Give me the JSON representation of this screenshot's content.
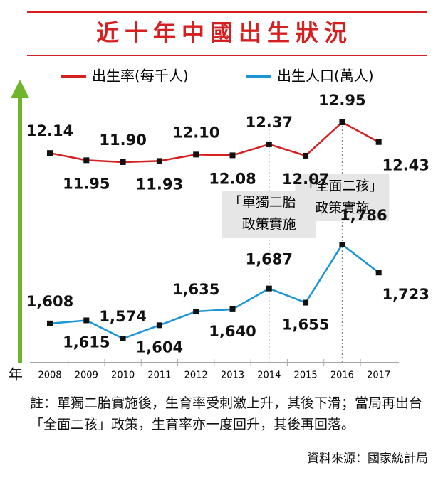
{
  "chart_data": {
    "type": "line",
    "title": "近十年中國出生狀況",
    "x_label": "年",
    "categories": [
      "2008",
      "2009",
      "2010",
      "2011",
      "2012",
      "2013",
      "2014",
      "2015",
      "2016",
      "2017"
    ],
    "series": [
      {
        "name": "出生率(每千人)",
        "color": "#d42020",
        "values": [
          12.14,
          11.95,
          11.9,
          11.93,
          12.1,
          12.08,
          12.37,
          12.07,
          12.95,
          12.43
        ],
        "value_labels": [
          "12.14",
          "11.95",
          "11.90",
          "11.93",
          "12.10",
          "12.08",
          "12.37",
          "12.07",
          "12.95",
          "12.43"
        ]
      },
      {
        "name": "出生人口(萬人)",
        "color": "#1a95d6",
        "values": [
          1608,
          1615,
          1574,
          1604,
          1635,
          1640,
          1687,
          1655,
          1786,
          1723
        ],
        "value_labels": [
          "1,608",
          "1,615",
          "1,574",
          "1,604",
          "1,635",
          "1,640",
          "1,687",
          "1,655",
          "1,786",
          "1,723"
        ]
      }
    ],
    "annotations": [
      {
        "category": "2014",
        "lines": [
          "「單獨二胎」",
          "政策實施"
        ]
      },
      {
        "category": "2016",
        "lines": [
          "「全面二孩」",
          "政策實施"
        ]
      }
    ],
    "note": "註：單獨二胎實施後，生育率受刺激上升，其後下滑；當局再出台「全面二孩」政策，生育率亦一度回升，其後再回落。",
    "source": "資料來源：國家統計局"
  }
}
